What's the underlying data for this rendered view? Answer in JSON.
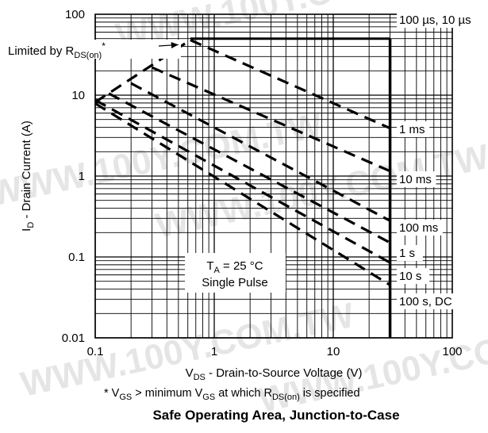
{
  "watermark": "WWW.100Y.COM.TW",
  "chart_data": {
    "type": "line",
    "title": "Safe Operating Area, Junction-to-Case",
    "xlabel": {
      "main": "V",
      "sub": "DS",
      "rest": " - Drain-to-Source Voltage (V)"
    },
    "ylabel": {
      "main": "I",
      "sub": "D",
      "rest": " - Drain Current (A)"
    },
    "x_scale": "log",
    "y_scale": "log",
    "xlim": [
      0.1,
      100
    ],
    "ylim": [
      0.01,
      100
    ],
    "grid": true,
    "x_ticks": [
      {
        "value": 0.1,
        "label": "0.1"
      },
      {
        "value": 1,
        "label": "1"
      },
      {
        "value": 10,
        "label": "10"
      },
      {
        "value": 100,
        "label": "100"
      }
    ],
    "y_ticks": [
      {
        "value": 0.01,
        "label": "0.01"
      },
      {
        "value": 0.1,
        "label": "0.1"
      },
      {
        "value": 1,
        "label": "1"
      },
      {
        "value": 10,
        "label": "10"
      },
      {
        "value": 100,
        "label": "100"
      }
    ],
    "limit_lines": {
      "current_limit_A": 50,
      "voltage_limit_V": 30
    },
    "rdson_annotation": {
      "prefix": "Limited by R",
      "sub": "DS(on)",
      "suffix": "*",
      "arrow_tip": [
        0.5,
        42
      ]
    },
    "conditions": {
      "ta_main": "T",
      "ta_sub": "A",
      "ta_rest": " = 25 °C",
      "line2": "Single Pulse"
    },
    "series": [
      {
        "name": "100 µs, 10 µs",
        "points": [
          [
            0.63,
            50
          ],
          [
            30,
            50
          ]
        ]
      },
      {
        "name": "1 ms",
        "points": [
          [
            0.63,
            48
          ],
          [
            30,
            3.9
          ]
        ]
      },
      {
        "name": "10 ms",
        "points": [
          [
            0.3,
            22
          ],
          [
            30,
            1.15
          ]
        ]
      },
      {
        "name": "100 ms",
        "points": [
          [
            0.2,
            14
          ],
          [
            30,
            0.28
          ]
        ]
      },
      {
        "name": "1 s",
        "points": [
          [
            0.13,
            10.5
          ],
          [
            30,
            0.15
          ]
        ]
      },
      {
        "name": "10 s",
        "points": [
          [
            0.1,
            8.7
          ],
          [
            30,
            0.085
          ]
        ]
      },
      {
        "name": "100 s, DC",
        "points": [
          [
            0.1,
            7.9
          ],
          [
            30,
            0.045
          ]
        ]
      }
    ],
    "rdson_line": {
      "points": [
        [
          0.1,
          8.2
        ],
        [
          0.63,
          48
        ]
      ]
    },
    "footnote": {
      "p1": "* V",
      "s1": "GS",
      "p2": "  > minimum V",
      "s2": "GS",
      "p3": " at which R",
      "s3": "DS(on)",
      "p4": " is specified"
    }
  }
}
